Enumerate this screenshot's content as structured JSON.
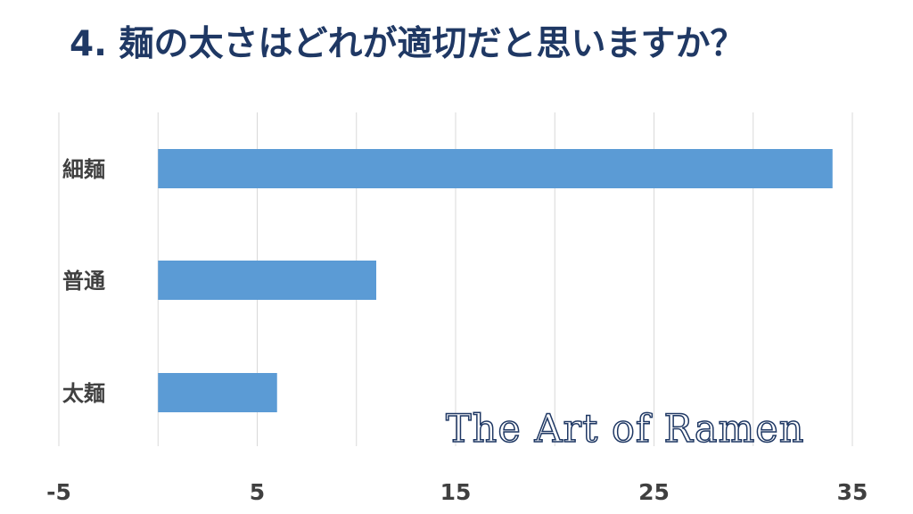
{
  "title": "4. 麺の太さはどれが適切だと思いますか？",
  "watermark": "The Art of Ramen",
  "colors": {
    "bar": "#5b9bd5",
    "title": "#1f3864",
    "grid": "#d9d9d9",
    "label": "#404040"
  },
  "chart_data": {
    "type": "bar",
    "orientation": "horizontal",
    "categories": [
      "細麺",
      "普通",
      "太麺"
    ],
    "values": [
      34,
      11,
      6
    ],
    "xlim": [
      -5,
      35
    ],
    "xticks": [
      -5,
      5,
      15,
      25,
      35
    ],
    "grid": true
  }
}
